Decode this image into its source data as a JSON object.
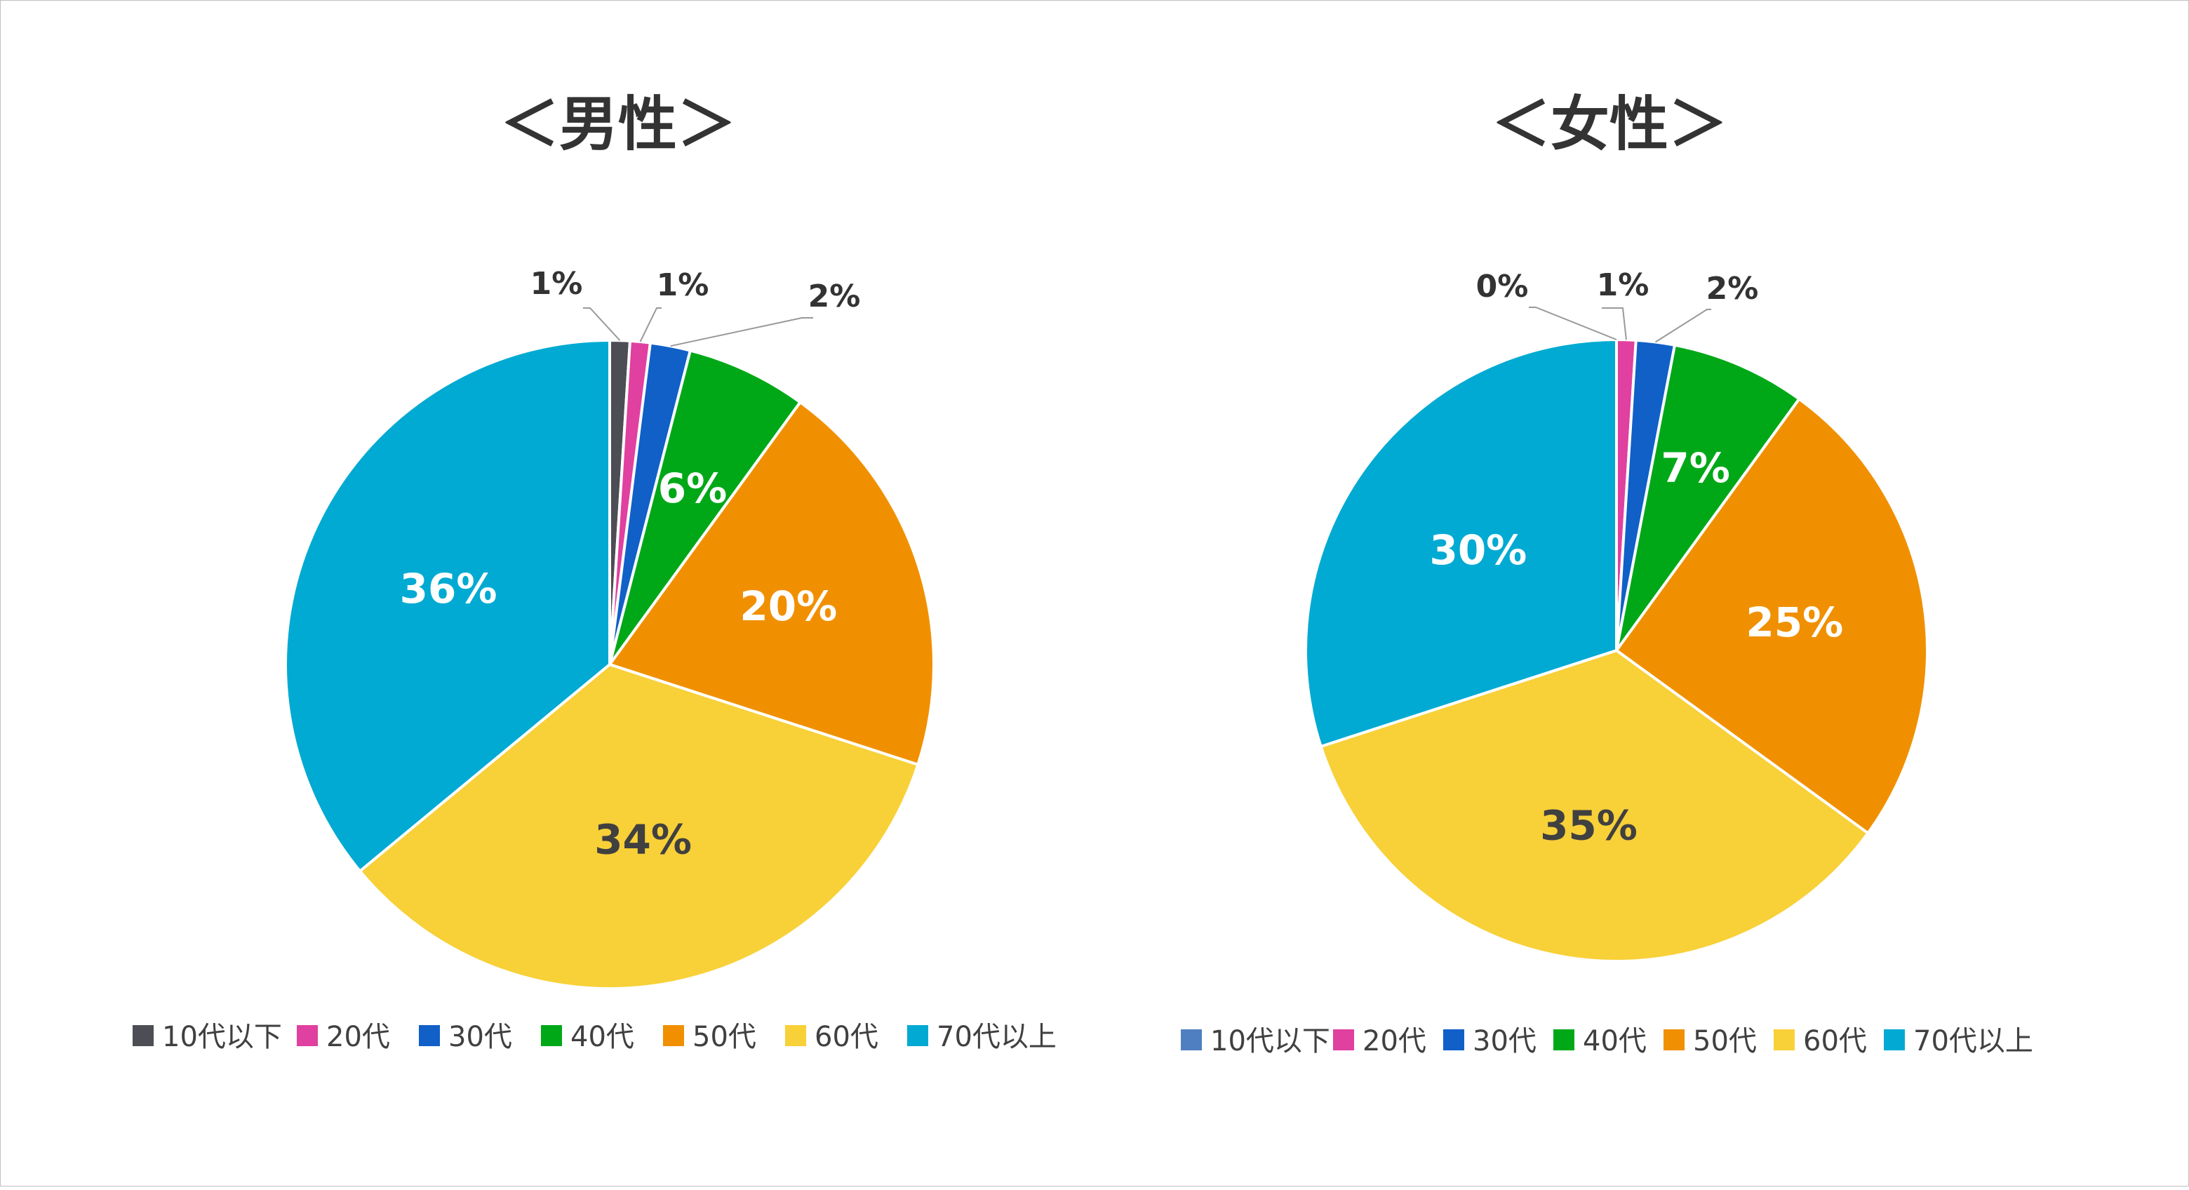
{
  "chart_data": [
    {
      "type": "pie",
      "title": "＜男性＞",
      "categories": [
        "10代以下",
        "20代",
        "30代",
        "40代",
        "50代",
        "60代",
        "70代以上"
      ],
      "values": [
        1,
        1,
        2,
        6,
        20,
        34,
        36
      ],
      "labels": [
        "1%",
        "1%",
        "2%",
        "6%",
        "20%",
        "34%",
        "36%"
      ],
      "colors": [
        "#4d4d55",
        "#e040a0",
        "#1060c8",
        "#00a818",
        "#f09000",
        "#f8d038",
        "#00aad2"
      ],
      "legend": "bottom"
    },
    {
      "type": "pie",
      "title": "＜女性＞",
      "categories": [
        "10代以下",
        "20代",
        "30代",
        "40代",
        "50代",
        "60代",
        "70代以上"
      ],
      "values": [
        0,
        1,
        2,
        7,
        25,
        35,
        30
      ],
      "labels": [
        "0%",
        "1%",
        "2%",
        "7%",
        "25%",
        "35%",
        "30%"
      ],
      "colors": [
        "#4f7fc0",
        "#e040a0",
        "#1060c8",
        "#00a818",
        "#f09000",
        "#f8d038",
        "#00aad2"
      ],
      "legend": "bottom"
    }
  ]
}
